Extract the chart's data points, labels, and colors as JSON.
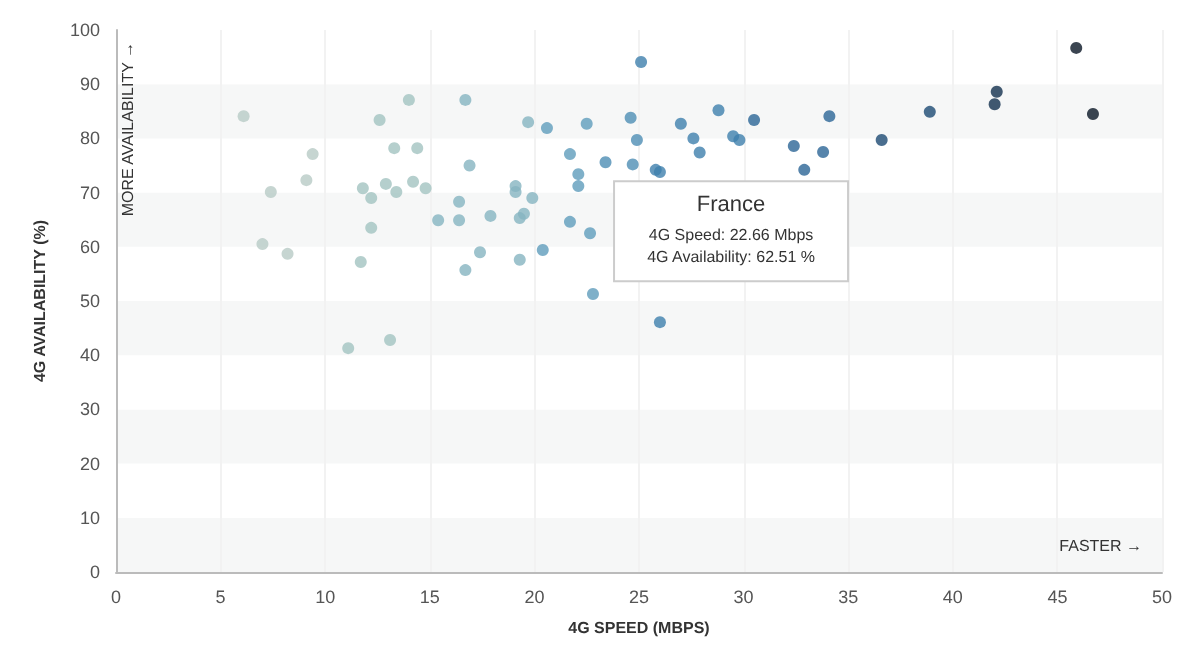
{
  "chart_data": {
    "type": "scatter",
    "xlabel": "4G SPEED (MBPS)",
    "ylabel": "4G AVAILABILITY (%)",
    "xlim": [
      0,
      50
    ],
    "xticks": [
      0,
      5,
      10,
      15,
      20,
      25,
      30,
      35,
      40,
      45,
      50
    ],
    "ylim": [
      0,
      100
    ],
    "yticks": [
      0,
      10,
      20,
      30,
      40,
      50,
      60,
      70,
      80,
      90,
      100
    ],
    "grid": true,
    "marker": "circle",
    "x": [
      6.1,
      7.4,
      7.0,
      8.2,
      9.1,
      9.4,
      11.1,
      13.1,
      11.7,
      11.8,
      12.2,
      12.2,
      12.6,
      12.9,
      13.3,
      13.4,
      14.0,
      14.2,
      14.4,
      14.8,
      15.4,
      16.4,
      16.4,
      16.7,
      16.7,
      16.9,
      17.4,
      17.9,
      19.1,
      19.1,
      19.3,
      19.3,
      19.5,
      19.7,
      19.9,
      20.4,
      20.6,
      21.7,
      21.7,
      22.1,
      22.1,
      22.5,
      22.66,
      22.8,
      25.1,
      26.0,
      24.6,
      24.9,
      23.4,
      24.7,
      25.8,
      26.0,
      27.0,
      27.6,
      27.9,
      28.8,
      29.5,
      29.8,
      30.5,
      32.4,
      32.9,
      33.8,
      34.1,
      36.6,
      38.9,
      42.1,
      42.0,
      45.9,
      46.7
    ],
    "values": [
      84.1,
      70.1,
      60.5,
      58.7,
      72.3,
      77.1,
      41.3,
      42.8,
      57.2,
      70.8,
      69.0,
      63.5,
      83.4,
      71.6,
      78.2,
      70.1,
      87.1,
      72.0,
      78.2,
      70.8,
      64.9,
      68.3,
      64.9,
      87.1,
      55.7,
      75.0,
      59.0,
      65.7,
      70.1,
      71.2,
      57.6,
      65.3,
      66.1,
      83.0,
      69.0,
      59.4,
      81.9,
      77.1,
      64.6,
      73.4,
      71.2,
      82.7,
      62.51,
      51.3,
      94.1,
      46.1,
      83.8,
      79.7,
      75.6,
      75.2,
      74.2,
      73.8,
      82.7,
      80.0,
      77.4,
      85.2,
      80.4,
      79.7,
      83.4,
      78.6,
      74.2,
      77.5,
      84.1,
      79.7,
      84.9,
      88.6,
      86.3,
      96.7,
      84.5
    ],
    "colors": [
      "#b8cbc6",
      "#b8cbc6",
      "#b8cbc6",
      "#b8cbc6",
      "#b8cbc6",
      "#b8cbc6",
      "#a3c3c1",
      "#a3c3c1",
      "#a3c3c1",
      "#a3c3c1",
      "#a3c3c1",
      "#a3c3c1",
      "#a3c3c1",
      "#a3c3c1",
      "#a3c3c1",
      "#a3c3c1",
      "#a3c3c1",
      "#a3c3c1",
      "#a3c3c1",
      "#a3c3c1",
      "#86b4c0",
      "#86b4c0",
      "#86b4c0",
      "#86b4c0",
      "#86b4c0",
      "#86b4c0",
      "#86b4c0",
      "#86b4c0",
      "#86b4c0",
      "#86b4c0",
      "#86b4c0",
      "#86b4c0",
      "#86b4c0",
      "#86b4c0",
      "#86b4c0",
      "#5f9cbb",
      "#5f9cbb",
      "#5f9cbb",
      "#5f9cbb",
      "#5f9cbb",
      "#5f9cbb",
      "#5f9cbb",
      "#5f9cbb",
      "#5f9cbb",
      "#3f80ad",
      "#3f80ad",
      "#4d8db4",
      "#4d8db4",
      "#4d8db4",
      "#4d8db4",
      "#3f80ad",
      "#3f80ad",
      "#3f80ad",
      "#3f80ad",
      "#3f80ad",
      "#3f80ad",
      "#3f80ad",
      "#3f80ad",
      "#2c6596",
      "#2c6596",
      "#2c6596",
      "#2c6596",
      "#2c6596",
      "#1d4a73",
      "#1d4a73",
      "#132f4d",
      "#132f4d",
      "#0a1626",
      "#0a1626"
    ],
    "annotations": [
      "MORE AVAILABILITY →",
      "FASTER →",
      {
        "text": "France\n4G Speed: 22.66 Mbps\n4G Availability: 62.51 %",
        "x": 22.66,
        "y": 62.51
      }
    ]
  }
}
